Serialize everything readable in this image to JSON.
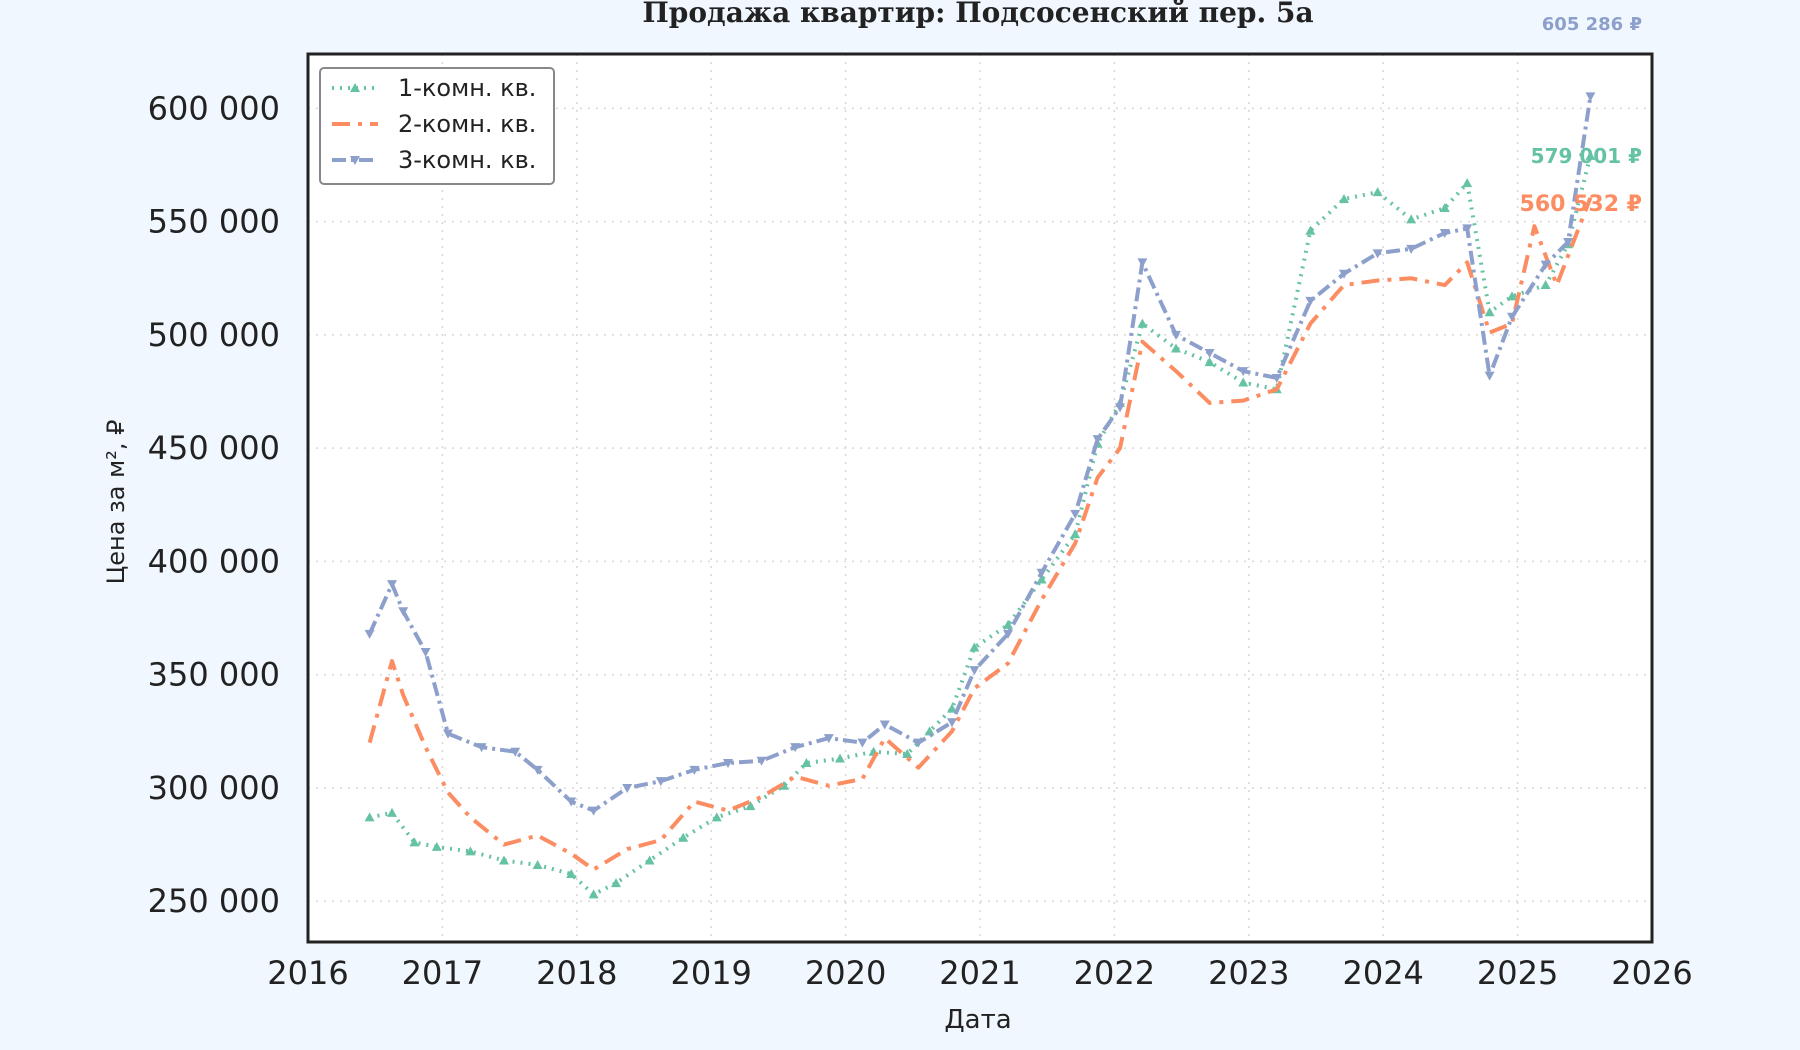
{
  "chart_data": {
    "type": "line",
    "title": "Продажа квартир: Подсосенский пер. 5а",
    "xlabel": "Дата",
    "ylabel": "Цена за м², ₽",
    "xlim": [
      2016,
      2026
    ],
    "ylim": [
      232000,
      624000
    ],
    "x_ticks": [
      2016,
      2017,
      2018,
      2019,
      2020,
      2021,
      2022,
      2023,
      2024,
      2025,
      2026
    ],
    "x_tick_labels": [
      "2016",
      "2017",
      "2018",
      "2019",
      "2020",
      "2021",
      "2022",
      "2023",
      "2024",
      "2025",
      "2026"
    ],
    "y_ticks": [
      250000,
      300000,
      350000,
      400000,
      450000,
      500000,
      550000,
      600000
    ],
    "y_tick_labels": [
      "250 000",
      "300 000",
      "350 000",
      "400 000",
      "450 000",
      "500 000",
      "550 000",
      "600 000"
    ],
    "grid": true,
    "legend_position": "top-left",
    "series": [
      {
        "name": "1-комн. кв.",
        "color": "#66c2a5",
        "dash": "2 6",
        "marker": "triangle-up",
        "end_label": "579 001 ₽",
        "points": [
          [
            "2016-06",
            287000
          ],
          [
            "2016-08",
            289000
          ],
          [
            "2016-10",
            276000
          ],
          [
            "2016-12",
            274000
          ],
          [
            "2017-03",
            272000
          ],
          [
            "2017-06",
            268000
          ],
          [
            "2017-09",
            266000
          ],
          [
            "2017-12",
            262000
          ],
          [
            "2018-02",
            253000
          ],
          [
            "2018-04",
            258000
          ],
          [
            "2018-07",
            268000
          ],
          [
            "2018-10",
            278000
          ],
          [
            "2019-01",
            287000
          ],
          [
            "2019-04",
            292000
          ],
          [
            "2019-07",
            301000
          ],
          [
            "2019-09",
            311000
          ],
          [
            "2019-12",
            313000
          ],
          [
            "2020-03",
            316000
          ],
          [
            "2020-06",
            315000
          ],
          [
            "2020-08",
            325000
          ],
          [
            "2020-10",
            335000
          ],
          [
            "2020-12",
            362000
          ],
          [
            "2021-03",
            372000
          ],
          [
            "2021-06",
            392000
          ],
          [
            "2021-09",
            412000
          ],
          [
            "2021-11",
            452000
          ],
          [
            "2022-01",
            470000
          ],
          [
            "2022-03",
            505000
          ],
          [
            "2022-06",
            494000
          ],
          [
            "2022-09",
            488000
          ],
          [
            "2022-12",
            479000
          ],
          [
            "2023-03",
            476000
          ],
          [
            "2023-06",
            546000
          ],
          [
            "2023-09",
            560000
          ],
          [
            "2023-12",
            563000
          ],
          [
            "2024-03",
            551000
          ],
          [
            "2024-06",
            556000
          ],
          [
            "2024-08",
            567000
          ],
          [
            "2024-10",
            510000
          ],
          [
            "2024-12",
            517000
          ],
          [
            "2025-03",
            522000
          ],
          [
            "2025-05",
            540000
          ],
          [
            "2025-07",
            579001
          ]
        ]
      },
      {
        "name": "2-комн. кв.",
        "color": "#fc8d62",
        "dash": "18 8 4 8",
        "marker": "none",
        "end_label": "560 532 ₽",
        "points": [
          [
            "2016-06",
            320000
          ],
          [
            "2016-08",
            356000
          ],
          [
            "2016-09",
            341000
          ],
          [
            "2016-11",
            318000
          ],
          [
            "2017-01",
            298000
          ],
          [
            "2017-03",
            287000
          ],
          [
            "2017-06",
            275000
          ],
          [
            "2017-09",
            279000
          ],
          [
            "2017-12",
            271000
          ],
          [
            "2018-02",
            264000
          ],
          [
            "2018-05",
            273000
          ],
          [
            "2018-08",
            277000
          ],
          [
            "2018-11",
            294000
          ],
          [
            "2019-02",
            290000
          ],
          [
            "2019-05",
            296000
          ],
          [
            "2019-08",
            305000
          ],
          [
            "2019-11",
            301000
          ],
          [
            "2020-02",
            304000
          ],
          [
            "2020-04",
            322000
          ],
          [
            "2020-07",
            309000
          ],
          [
            "2020-10",
            325000
          ],
          [
            "2020-12",
            344000
          ],
          [
            "2021-03",
            355000
          ],
          [
            "2021-06",
            383000
          ],
          [
            "2021-09",
            408000
          ],
          [
            "2021-11",
            437000
          ],
          [
            "2022-01",
            450000
          ],
          [
            "2022-03",
            497000
          ],
          [
            "2022-06",
            484000
          ],
          [
            "2022-09",
            470000
          ],
          [
            "2022-12",
            471000
          ],
          [
            "2023-03",
            476000
          ],
          [
            "2023-06",
            505000
          ],
          [
            "2023-09",
            522000
          ],
          [
            "2023-12",
            524000
          ],
          [
            "2024-03",
            525000
          ],
          [
            "2024-06",
            522000
          ],
          [
            "2024-08",
            532000
          ],
          [
            "2024-10",
            501000
          ],
          [
            "2024-12",
            505000
          ],
          [
            "2025-02",
            548000
          ],
          [
            "2025-04",
            522000
          ],
          [
            "2025-07",
            560532
          ]
        ]
      },
      {
        "name": "3-комн. кв.",
        "color": "#8da0cb",
        "dash": "14 5 3 5",
        "marker": "triangle-down",
        "end_label": "605 286 ₽",
        "points": [
          [
            "2016-06",
            368000
          ],
          [
            "2016-08",
            390000
          ],
          [
            "2016-09",
            378000
          ],
          [
            "2016-11",
            360000
          ],
          [
            "2017-01",
            324000
          ],
          [
            "2017-04",
            318000
          ],
          [
            "2017-07",
            316000
          ],
          [
            "2017-09",
            308000
          ],
          [
            "2017-12",
            294000
          ],
          [
            "2018-02",
            290000
          ],
          [
            "2018-05",
            300000
          ],
          [
            "2018-08",
            303000
          ],
          [
            "2018-11",
            308000
          ],
          [
            "2019-02",
            311000
          ],
          [
            "2019-05",
            312000
          ],
          [
            "2019-08",
            318000
          ],
          [
            "2019-11",
            322000
          ],
          [
            "2020-02",
            320000
          ],
          [
            "2020-04",
            328000
          ],
          [
            "2020-07",
            320000
          ],
          [
            "2020-10",
            329000
          ],
          [
            "2020-12",
            352000
          ],
          [
            "2021-03",
            368000
          ],
          [
            "2021-06",
            395000
          ],
          [
            "2021-09",
            421000
          ],
          [
            "2021-11",
            454000
          ],
          [
            "2022-01",
            468000
          ],
          [
            "2022-03",
            532000
          ],
          [
            "2022-06",
            500000
          ],
          [
            "2022-09",
            492000
          ],
          [
            "2022-12",
            484000
          ],
          [
            "2023-03",
            481000
          ],
          [
            "2023-06",
            515000
          ],
          [
            "2023-09",
            527000
          ],
          [
            "2023-12",
            536000
          ],
          [
            "2024-03",
            538000
          ],
          [
            "2024-06",
            545000
          ],
          [
            "2024-08",
            547000
          ],
          [
            "2024-10",
            482000
          ],
          [
            "2024-12",
            508000
          ],
          [
            "2025-03",
            531000
          ],
          [
            "2025-05",
            541000
          ],
          [
            "2025-07",
            605286
          ]
        ]
      }
    ]
  }
}
